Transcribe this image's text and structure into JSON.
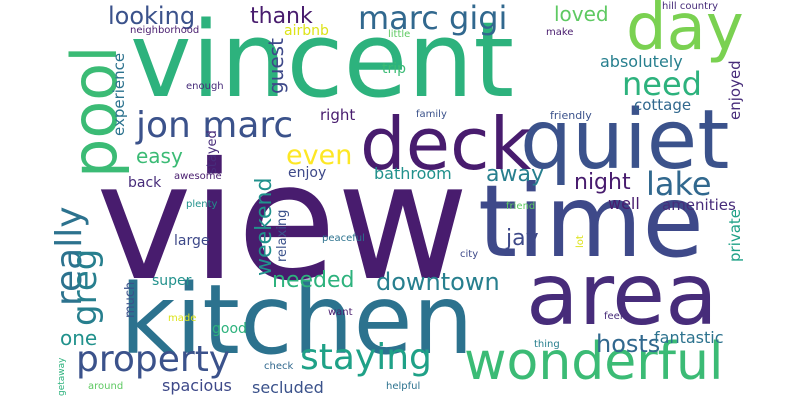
{
  "palette": {
    "dark_purple": "#481c6e",
    "purple": "#472c7a",
    "indigo": "#3e4989",
    "slate_blue": "#3b528b",
    "steel_blue": "#31688e",
    "teal_blue": "#2c728e",
    "teal": "#277f8e",
    "sea_green": "#21918c",
    "green_teal": "#1fa187",
    "emerald": "#2db27d",
    "green": "#3bbb75",
    "light_green": "#5ec962",
    "lime": "#7ad151",
    "yellow": "#dde318",
    "bright_yellow": "#fde725"
  },
  "words": [
    {
      "id": "view",
      "text": "view"
    },
    {
      "id": "vincent",
      "text": "vincent"
    },
    {
      "id": "kitchen",
      "text": "kitchen"
    },
    {
      "id": "time",
      "text": "time"
    },
    {
      "id": "area",
      "text": "area"
    },
    {
      "id": "quiet",
      "text": "quiet"
    },
    {
      "id": "deck",
      "text": "deck"
    },
    {
      "id": "day",
      "text": "day"
    },
    {
      "id": "pool",
      "text": "pool"
    },
    {
      "id": "wonderful",
      "text": "wonderful"
    },
    {
      "id": "property",
      "text": "property"
    },
    {
      "id": "staying",
      "text": "staying"
    },
    {
      "id": "jon_marc",
      "text": "jon marc"
    },
    {
      "id": "marc_gigi",
      "text": "marc gigi"
    },
    {
      "id": "lake",
      "text": "lake"
    },
    {
      "id": "really",
      "text": "really"
    },
    {
      "id": "greg",
      "text": "greg"
    },
    {
      "id": "need",
      "text": "need"
    },
    {
      "id": "even",
      "text": "even"
    },
    {
      "id": "downtown",
      "text": "downtown"
    },
    {
      "id": "looking",
      "text": "looking"
    },
    {
      "id": "hosts",
      "text": "hosts"
    },
    {
      "id": "needed",
      "text": "needed"
    },
    {
      "id": "thank",
      "text": "thank"
    },
    {
      "id": "guest",
      "text": "guest"
    },
    {
      "id": "loved",
      "text": "loved"
    },
    {
      "id": "night",
      "text": "night"
    },
    {
      "id": "away",
      "text": "away"
    },
    {
      "id": "weekend",
      "text": "weekend"
    },
    {
      "id": "jay",
      "text": "jay"
    },
    {
      "id": "easy",
      "text": "easy"
    },
    {
      "id": "one",
      "text": "one"
    },
    {
      "id": "fantastic",
      "text": "fantastic"
    },
    {
      "id": "secluded",
      "text": "secluded"
    },
    {
      "id": "spacious",
      "text": "spacious"
    },
    {
      "id": "absolutely",
      "text": "absolutely"
    },
    {
      "id": "cottage",
      "text": "cottage"
    },
    {
      "id": "bathroom",
      "text": "bathroom"
    },
    {
      "id": "well",
      "text": "well"
    },
    {
      "id": "amenities",
      "text": "amenities"
    },
    {
      "id": "private",
      "text": "private"
    },
    {
      "id": "enjoyed",
      "text": "enjoyed"
    },
    {
      "id": "airbnb",
      "text": "airbnb"
    },
    {
      "id": "trip",
      "text": "trip"
    },
    {
      "id": "experience",
      "text": "experience"
    },
    {
      "id": "right",
      "text": "right"
    },
    {
      "id": "enjoy",
      "text": "enjoy"
    },
    {
      "id": "back",
      "text": "back"
    },
    {
      "id": "large",
      "text": "large"
    },
    {
      "id": "super",
      "text": "super"
    },
    {
      "id": "much",
      "text": "much"
    },
    {
      "id": "good",
      "text": "good"
    },
    {
      "id": "relaxing",
      "text": "relaxing"
    },
    {
      "id": "stayed",
      "text": "stayed"
    },
    {
      "id": "friendly",
      "text": "friendly"
    },
    {
      "id": "hill_country",
      "text": "hill country"
    },
    {
      "id": "neighborhood",
      "text": "neighborhood"
    },
    {
      "id": "make",
      "text": "make"
    },
    {
      "id": "little",
      "text": "little"
    },
    {
      "id": "enough",
      "text": "enough"
    },
    {
      "id": "family",
      "text": "family"
    },
    {
      "id": "awesome",
      "text": "awesome"
    },
    {
      "id": "plenty",
      "text": "plenty"
    },
    {
      "id": "peaceful",
      "text": "peaceful"
    },
    {
      "id": "city",
      "text": "city"
    },
    {
      "id": "friend",
      "text": "friend"
    },
    {
      "id": "lot",
      "text": "lot"
    },
    {
      "id": "want",
      "text": "want"
    },
    {
      "id": "feel",
      "text": "feel"
    },
    {
      "id": "made",
      "text": "made"
    },
    {
      "id": "check",
      "text": "check"
    },
    {
      "id": "thing",
      "text": "thing"
    },
    {
      "id": "helpful",
      "text": "helpful"
    },
    {
      "id": "around",
      "text": "around"
    },
    {
      "id": "getaway",
      "text": "getaway"
    }
  ]
}
